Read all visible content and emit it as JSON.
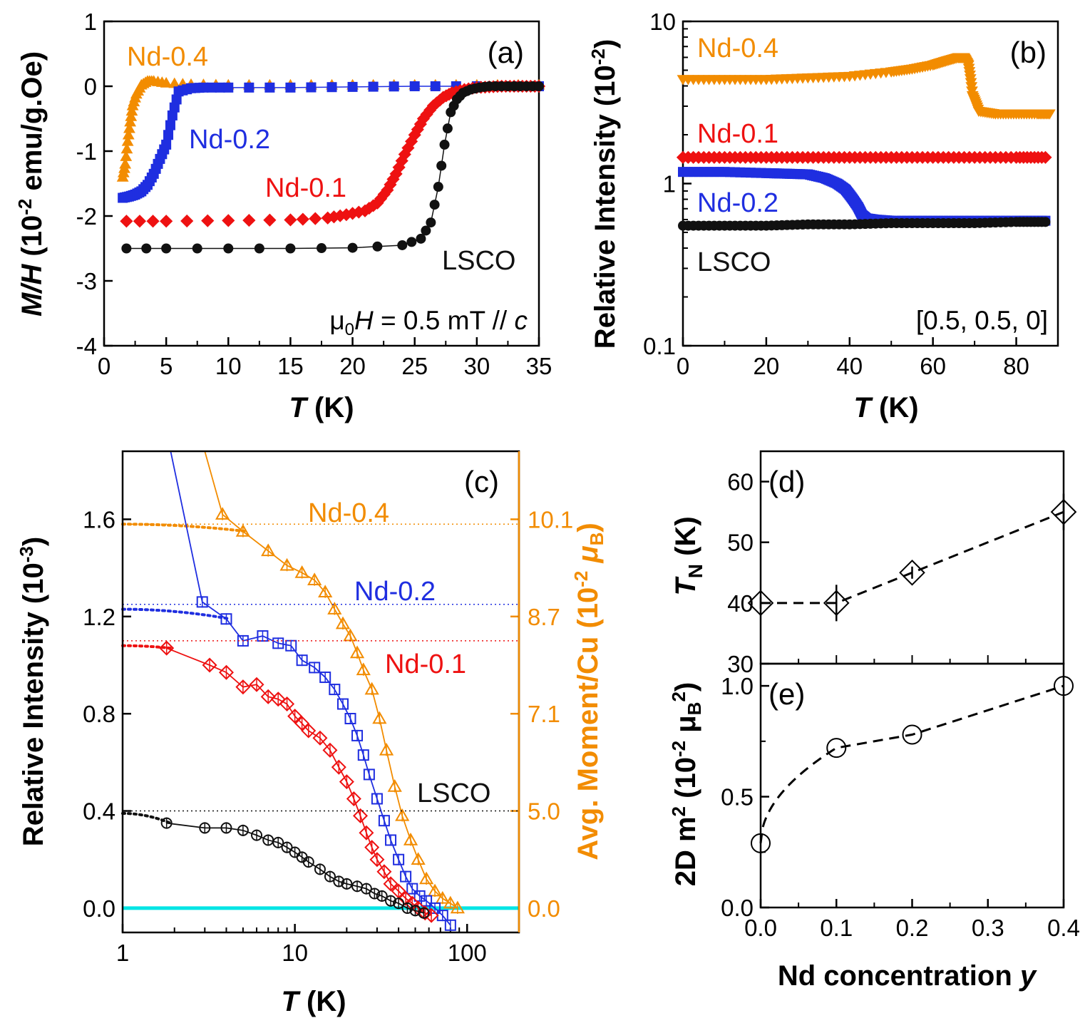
{
  "chart_data": [
    {
      "panel": "(a)",
      "type": "scatter",
      "xlabel": "T",
      "xunit": "(K)",
      "ylabel": "M/H",
      "yunit": "(10",
      "yunit_sup": "-2",
      "yunit_rest": " emu/g.Oe)",
      "xlim": [
        0,
        35
      ],
      "ylim": [
        -4,
        1
      ],
      "xticks": [
        "0",
        "5",
        "10",
        "15",
        "20",
        "25",
        "30",
        "35"
      ],
      "xtick_values": [
        0,
        5,
        10,
        15,
        20,
        25,
        30,
        35
      ],
      "yticks": [
        "-4",
        "-3",
        "-2",
        "-1",
        "0",
        "1"
      ],
      "ytick_values": [
        -4,
        -3,
        -2,
        -1,
        0,
        1
      ],
      "annotation": {
        "pre": "μ",
        "sub": "0",
        "mid": "H",
        "post": " = 0.5 mT // ",
        "end": "c"
      },
      "series": [
        {
          "name": "Nd-0.4",
          "color": "#f28c00",
          "marker": "triangle",
          "x": [
            1.5,
            1.7,
            1.9,
            2.1,
            2.3,
            2.6,
            3.0,
            3.5,
            4,
            5,
            7,
            10,
            15,
            20,
            25,
            30,
            35
          ],
          "y": [
            -1.4,
            -1.2,
            -0.85,
            -0.55,
            -0.3,
            -0.12,
            0.02,
            0.08,
            0.08,
            0.05,
            0.03,
            0.02,
            0.02,
            0.02,
            0.02,
            0.02,
            0.02
          ]
        },
        {
          "name": "Nd-0.2",
          "color": "#1f2ee0",
          "marker": "square",
          "x": [
            1.5,
            2.0,
            2.5,
            3.0,
            3.5,
            4.0,
            4.5,
            5.0,
            5.5,
            6.0,
            7,
            8,
            10,
            15,
            20,
            25,
            30,
            35
          ],
          "y": [
            -1.72,
            -1.7,
            -1.67,
            -1.62,
            -1.52,
            -1.35,
            -1.12,
            -0.9,
            -0.45,
            -0.08,
            -0.03,
            -0.02,
            -0.02,
            -0.02,
            -0.01,
            0.0,
            0.0,
            0.0
          ],
          "line": true
        },
        {
          "name": "Nd-0.1",
          "color": "#ee1111",
          "marker": "diamond",
          "x": [
            1.8,
            5,
            10,
            15,
            18,
            19.5,
            21,
            22,
            22.8,
            23.5,
            24.2,
            25,
            25.7,
            26.5,
            27.3,
            28,
            29,
            30,
            31,
            32,
            33,
            34,
            35
          ],
          "y": [
            -2.08,
            -2.08,
            -2.07,
            -2.06,
            -2.03,
            -1.98,
            -1.92,
            -1.8,
            -1.6,
            -1.35,
            -1.05,
            -0.75,
            -0.5,
            -0.3,
            -0.17,
            -0.1,
            -0.05,
            -0.02,
            -0.01,
            0.0,
            0.0,
            0.0,
            0.0
          ]
        },
        {
          "name": "LSCO",
          "color": "#111111",
          "marker": "circle",
          "x": [
            1.8,
            5,
            10,
            15,
            20,
            24,
            25.5,
            26.3,
            26.9,
            27.4,
            27.9,
            28.4,
            28.9,
            29.5,
            30.2,
            31,
            32,
            33,
            34,
            35
          ],
          "y": [
            -2.5,
            -2.5,
            -2.5,
            -2.5,
            -2.49,
            -2.45,
            -2.35,
            -2.1,
            -1.55,
            -0.9,
            -0.4,
            -0.2,
            -0.1,
            -0.05,
            -0.02,
            0.0,
            0.0,
            0.0,
            0.0,
            0.0
          ],
          "line": true
        }
      ]
    },
    {
      "panel": "(b)",
      "type": "scatter",
      "xlabel": "T",
      "xunit": "(K)",
      "ylabel": "Relative Intensity (10",
      "ylabel_sup": "-2",
      "ylabel_end": ")",
      "yscale": "log",
      "xlim": [
        0,
        90
      ],
      "ylim": [
        0.1,
        10
      ],
      "xticks": [
        "0",
        "20",
        "40",
        "60",
        "80"
      ],
      "xtick_values": [
        0,
        20,
        40,
        60,
        80
      ],
      "yticks": [
        "0.1",
        "1",
        "10"
      ],
      "ytick_values": [
        0.1,
        1,
        10
      ],
      "annotation": "[0.5, 0.5, 0]",
      "series": [
        {
          "name": "Nd-0.4",
          "color": "#f28c00",
          "marker": "triangle-down",
          "x": [
            0,
            10,
            20,
            30,
            40,
            50,
            55,
            60,
            63,
            66,
            67.5,
            68.5,
            69.5,
            71,
            75,
            80,
            85,
            88
          ],
          "y": [
            4.4,
            4.4,
            4.4,
            4.5,
            4.6,
            4.9,
            5.1,
            5.4,
            5.7,
            6.0,
            6.0,
            5.4,
            3.5,
            2.8,
            2.7,
            2.7,
            2.7,
            2.7
          ]
        },
        {
          "name": "Nd-0.1",
          "color": "#ee1111",
          "marker": "diamond",
          "x": [
            0,
            10,
            20,
            30,
            40,
            50,
            60,
            70,
            80,
            87
          ],
          "y": [
            1.45,
            1.45,
            1.45,
            1.45,
            1.45,
            1.45,
            1.45,
            1.45,
            1.45,
            1.45
          ]
        },
        {
          "name": "Nd-0.2",
          "color": "#1f2ee0",
          "marker": "square",
          "x": [
            0,
            10,
            20,
            25,
            30,
            34,
            37,
            39,
            40.5,
            42,
            43,
            44,
            46,
            50,
            60,
            70,
            80,
            87
          ],
          "y": [
            1.18,
            1.18,
            1.16,
            1.15,
            1.14,
            1.08,
            1.0,
            0.92,
            0.82,
            0.72,
            0.64,
            0.61,
            0.6,
            0.59,
            0.59,
            0.59,
            0.59,
            0.59
          ]
        },
        {
          "name": "LSCO",
          "color": "#111111",
          "marker": "circle",
          "x": [
            0,
            10,
            20,
            30,
            40,
            50,
            60,
            70,
            80,
            87
          ],
          "y": [
            0.55,
            0.55,
            0.55,
            0.56,
            0.56,
            0.57,
            0.57,
            0.57,
            0.58,
            0.58
          ]
        }
      ]
    },
    {
      "panel": "(c)",
      "type": "line",
      "xlabel": "T",
      "xunit": "(K)",
      "xscale": "log",
      "ylabel": "Relative Intensity (10",
      "ylabel_sup": "-3",
      "ylabel_end": ")",
      "ylabel_right": "Avg. Moment/Cu (10",
      "ylabel_right_sup": "-2",
      "ylabel_right_end": " μ",
      "ylabel_right_sub": "B",
      "ylabel_right_close": ")",
      "xlim": [
        1,
        200
      ],
      "ylim": [
        -0.1,
        1.88
      ],
      "xticks": [
        "1",
        "10",
        "100"
      ],
      "xtick_values": [
        1,
        10,
        100
      ],
      "yticks": [
        "0.0",
        "0.4",
        "0.8",
        "1.2",
        "1.6"
      ],
      "ytick_values": [
        0,
        0.4,
        0.8,
        1.2,
        1.6
      ],
      "yticks_right": [
        "0.0",
        "5.0",
        "7.1",
        "8.7",
        "10.1"
      ],
      "ytick_right_values": [
        0,
        0.4,
        0.8,
        1.2,
        1.6
      ],
      "zero_line_color": "#00e5e5",
      "series": [
        {
          "name": "Nd-0.4",
          "color": "#f28c00",
          "marker": "triangle-open",
          "x": [
            3.0,
            3.8,
            5,
            7,
            9,
            11,
            13,
            15,
            17,
            19,
            21,
            23,
            25,
            28,
            31,
            34,
            38,
            42,
            47,
            52,
            58,
            65,
            72,
            80,
            88
          ],
          "y": [
            1.9,
            1.62,
            1.55,
            1.47,
            1.41,
            1.38,
            1.35,
            1.3,
            1.23,
            1.17,
            1.12,
            1.05,
            0.98,
            0.9,
            0.78,
            0.65,
            0.5,
            0.38,
            0.28,
            0.2,
            0.12,
            0.07,
            0.04,
            0.02,
            0.0
          ],
          "fit": {
            "y0": 1.58,
            "dotted_level": 1.58
          }
        },
        {
          "name": "Nd-0.2",
          "color": "#1f2ee0",
          "marker": "square-open",
          "x": [
            1.9,
            2.9,
            4,
            5,
            6.5,
            8,
            9.5,
            11,
            13,
            15,
            17,
            19,
            21,
            23,
            25,
            27,
            30,
            33,
            36,
            40,
            44,
            48,
            53,
            58,
            65,
            72,
            80
          ],
          "y": [
            1.9,
            1.26,
            1.19,
            1.1,
            1.12,
            1.09,
            1.08,
            1.02,
            0.99,
            0.95,
            0.9,
            0.84,
            0.78,
            0.71,
            0.63,
            0.55,
            0.45,
            0.36,
            0.28,
            0.2,
            0.13,
            0.08,
            0.05,
            0.03,
            0.0,
            -0.03,
            -0.07
          ],
          "fit": {
            "y0": 1.23,
            "dotted_level": 1.25
          }
        },
        {
          "name": "Nd-0.1",
          "color": "#ee1111",
          "marker": "diamond-open",
          "x": [
            1.8,
            3.2,
            4,
            5,
            6,
            7,
            8,
            9,
            10,
            11,
            12,
            14,
            16,
            18,
            20,
            22,
            24,
            26,
            28,
            30,
            33,
            36,
            40,
            44,
            48,
            52,
            57,
            62
          ],
          "y": [
            1.07,
            1.0,
            0.97,
            0.91,
            0.92,
            0.87,
            0.86,
            0.84,
            0.79,
            0.76,
            0.73,
            0.7,
            0.65,
            0.58,
            0.52,
            0.45,
            0.38,
            0.31,
            0.25,
            0.2,
            0.15,
            0.1,
            0.07,
            0.04,
            0.02,
            0.0,
            -0.02,
            -0.03
          ],
          "fit": {
            "y0": 1.08,
            "dotted_level": 1.1
          }
        },
        {
          "name": "LSCO",
          "color": "#111111",
          "marker": "circle-open",
          "x": [
            1.8,
            3,
            4,
            5,
            6,
            7,
            8,
            9,
            10,
            11,
            12,
            14,
            16,
            18,
            20,
            23,
            26,
            29,
            32,
            36,
            40,
            45,
            50,
            56
          ],
          "y": [
            0.35,
            0.33,
            0.33,
            0.32,
            0.3,
            0.28,
            0.27,
            0.25,
            0.23,
            0.21,
            0.19,
            0.16,
            0.13,
            0.11,
            0.1,
            0.09,
            0.08,
            0.06,
            0.05,
            0.03,
            0.02,
            0.0,
            -0.01,
            -0.02
          ],
          "fit": {
            "y0": 0.39,
            "dotted_level": 0.4
          }
        }
      ]
    },
    {
      "panel": "(d)",
      "type": "line",
      "xlabel": "Nd concentration",
      "xlabel_var": "y",
      "ylabel": "T",
      "ylabel_sub": "N",
      "ylabel_unit": " (K)",
      "xlim": [
        0,
        0.4
      ],
      "ylim": [
        30,
        65
      ],
      "yticks": [
        "30",
        "40",
        "50",
        "60"
      ],
      "ytick_values": [
        30,
        40,
        50,
        60
      ],
      "marker": "diamond-open",
      "x": [
        0.0,
        0.1,
        0.2,
        0.4
      ],
      "y": [
        40,
        40,
        45,
        55
      ],
      "yerr": [
        1,
        3,
        1,
        3
      ]
    },
    {
      "panel": "(e)",
      "type": "line",
      "xlabel": "Nd concentration",
      "xlabel_var": "y",
      "ylabel": "2D m",
      "ylabel_sup": "2",
      "ylabel_unit": " (10",
      "ylabel_unit_sup": "-2",
      "ylabel_unit_mid": " μ",
      "ylabel_unit_sub": "B",
      "ylabel_unit_sup2": "2",
      "ylabel_unit_end": ")",
      "xlim": [
        0,
        0.4
      ],
      "ylim": [
        0,
        1.1
      ],
      "xticks": [
        "0.0",
        "0.1",
        "0.2",
        "0.3",
        "0.4"
      ],
      "xtick_values": [
        0.0,
        0.1,
        0.2,
        0.3,
        0.4
      ],
      "yticks": [
        "0.0",
        "0.5",
        "1.0"
      ],
      "ytick_values": [
        0,
        0.5,
        1.0
      ],
      "marker": "circle-open",
      "x": [
        0.0,
        0.1,
        0.2,
        0.4
      ],
      "y": [
        0.29,
        0.72,
        0.78,
        1.0
      ]
    }
  ]
}
